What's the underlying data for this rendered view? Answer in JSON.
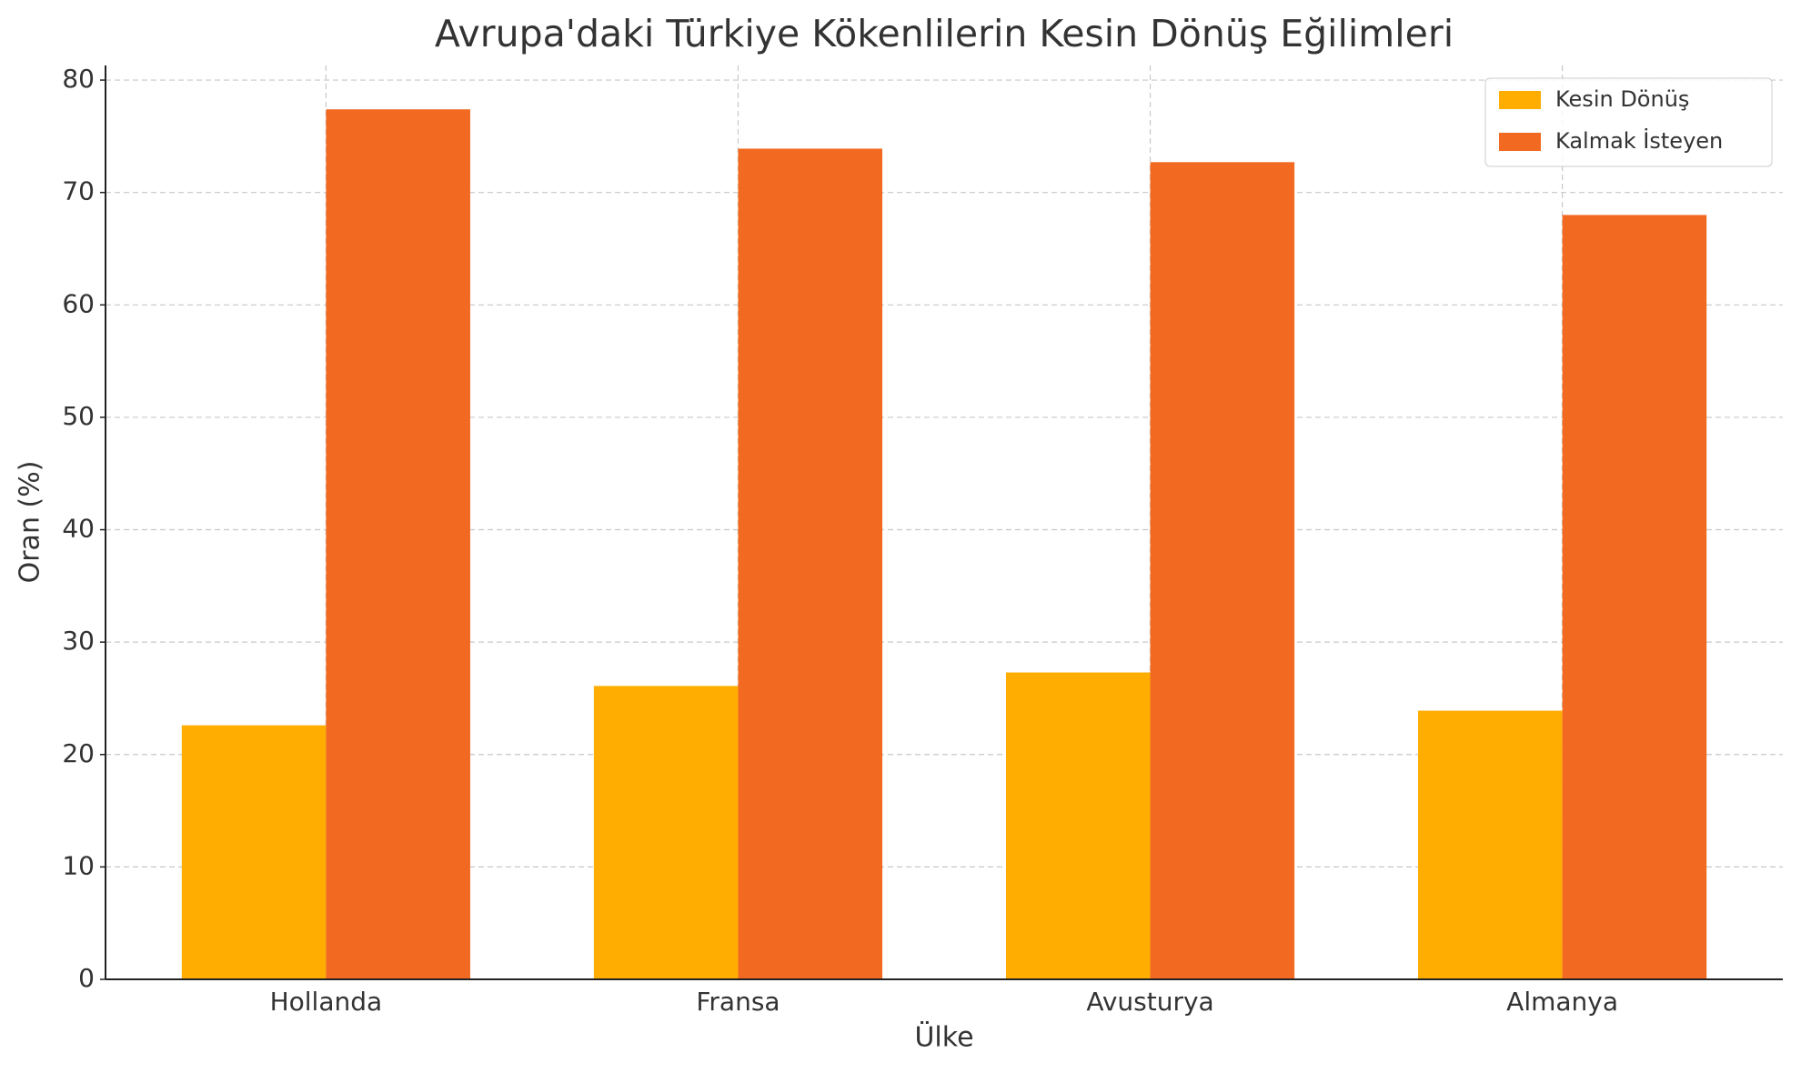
{
  "chart_data": {
    "type": "bar",
    "title": "Avrupa'daki Türkiye Kökenlilerin Kesin Dönüş Eğilimleri",
    "xlabel": "Ülke",
    "ylabel": "Oran (%)",
    "categories": [
      "Hollanda",
      "Fransa",
      "Avusturya",
      "Almanya"
    ],
    "series": [
      {
        "name": "Kesin Dönüş",
        "color": "#ffad00",
        "values": [
          22.6,
          26.1,
          27.3,
          23.9
        ]
      },
      {
        "name": "Kalmak İsteyen",
        "color": "#f26a21",
        "values": [
          77.4,
          73.9,
          72.7,
          68.0
        ]
      }
    ],
    "ylim": [
      0,
      81.3
    ],
    "yticks": [
      0,
      10,
      20,
      30,
      40,
      50,
      60,
      70,
      80
    ],
    "grid": true,
    "legend": "upper right"
  }
}
